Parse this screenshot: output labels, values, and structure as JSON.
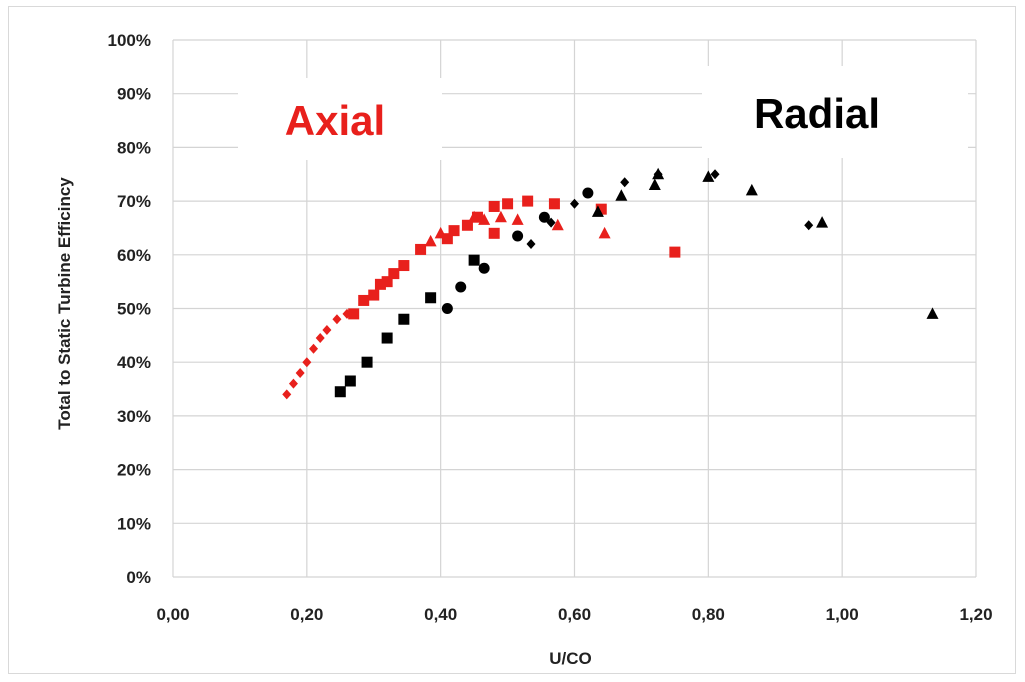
{
  "chart_data": {
    "type": "scatter",
    "xlabel": "U/CO",
    "ylabel": "Total to Static Turbine Efficincy",
    "xlim": [
      0,
      1.2
    ],
    "ylim": [
      0,
      100
    ],
    "x_ticks": [
      "0,00",
      "0,20",
      "0,40",
      "0,60",
      "0,80",
      "1,00",
      "1,20"
    ],
    "y_ticks": [
      "0%",
      "10%",
      "20%",
      "30%",
      "40%",
      "50%",
      "60%",
      "70%",
      "80%",
      "90%",
      "100%"
    ],
    "grid": true,
    "annotations": [
      {
        "text": "Axial",
        "color": "#e8201c"
      },
      {
        "text": "Radial",
        "color": "#000000"
      }
    ],
    "series": [
      {
        "group": "Axial",
        "marker": "diamond",
        "color": "#e8201c",
        "x": [
          0.17,
          0.18,
          0.19,
          0.2,
          0.21,
          0.22,
          0.23,
          0.245,
          0.26
        ],
        "y": [
          34,
          36,
          38,
          40,
          42.5,
          44.5,
          46,
          48,
          49
        ]
      },
      {
        "group": "Axial",
        "marker": "square",
        "color": "#e8201c",
        "x": [
          0.27,
          0.285,
          0.3,
          0.31,
          0.32,
          0.33,
          0.345,
          0.37,
          0.41,
          0.42,
          0.44,
          0.455,
          0.48,
          0.48,
          0.5,
          0.53,
          0.57,
          0.64,
          0.75
        ],
        "y": [
          49,
          51.5,
          52.5,
          54.5,
          55,
          56.5,
          58,
          61,
          63,
          64.5,
          65.5,
          67,
          64,
          69,
          69.5,
          70,
          69.5,
          68.5,
          60.5
        ]
      },
      {
        "group": "Axial",
        "marker": "triangle",
        "color": "#e8201c",
        "x": [
          0.385,
          0.4,
          0.45,
          0.465,
          0.49,
          0.515,
          0.575,
          0.645
        ],
        "y": [
          62.5,
          64,
          67,
          66.5,
          67,
          66.5,
          65.5,
          64
        ]
      },
      {
        "group": "Radial",
        "marker": "square",
        "color": "#000000",
        "x": [
          0.25,
          0.265,
          0.29,
          0.32,
          0.345,
          0.385,
          0.45
        ],
        "y": [
          34.5,
          36.5,
          40,
          44.5,
          48,
          52,
          59
        ]
      },
      {
        "group": "Radial",
        "marker": "circle",
        "color": "#000000",
        "x": [
          0.41,
          0.43,
          0.465,
          0.515,
          0.555,
          0.62
        ],
        "y": [
          50,
          54,
          57.5,
          63.5,
          67,
          71.5
        ]
      },
      {
        "group": "Radial",
        "marker": "diamond",
        "color": "#000000",
        "x": [
          0.535,
          0.565,
          0.6,
          0.675,
          0.725,
          0.81,
          0.95
        ],
        "y": [
          62,
          66,
          69.5,
          73.5,
          75,
          75,
          65.5
        ]
      },
      {
        "group": "Radial",
        "marker": "triangle",
        "color": "#000000",
        "x": [
          0.635,
          0.67,
          0.72,
          0.725,
          0.8,
          0.865,
          0.97,
          1.135
        ],
        "y": [
          68,
          71,
          73,
          75,
          74.5,
          72,
          66,
          49
        ]
      }
    ]
  }
}
